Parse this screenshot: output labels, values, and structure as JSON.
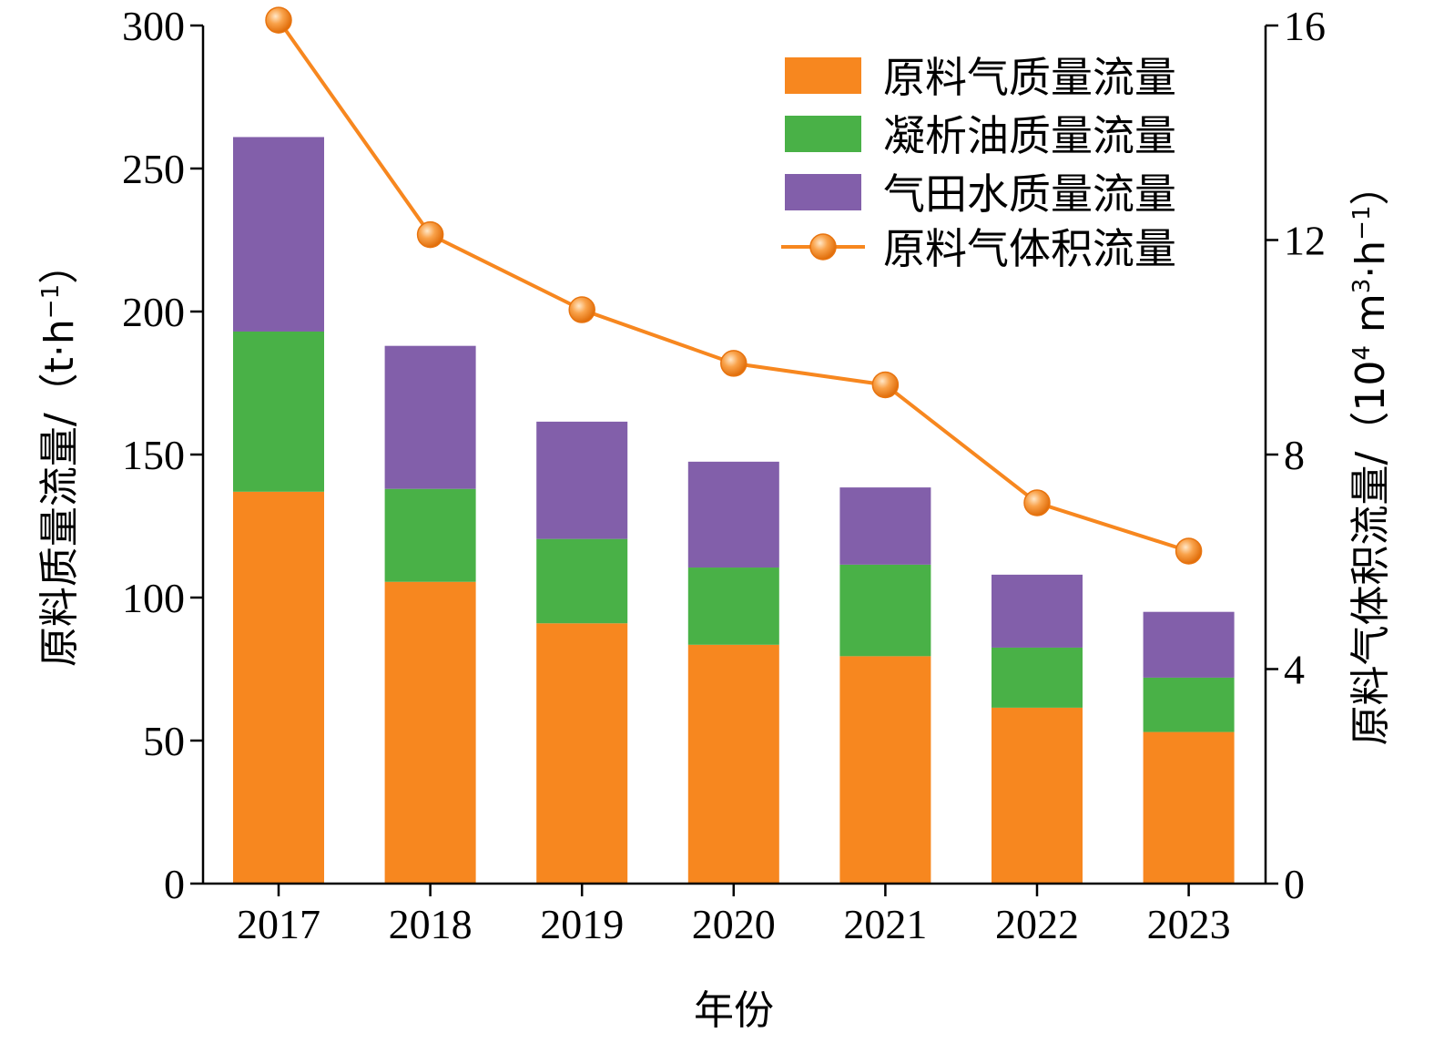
{
  "chart_data": {
    "type": "bar",
    "stacked": true,
    "categories": [
      "2017",
      "2018",
      "2019",
      "2020",
      "2021",
      "2022",
      "2023"
    ],
    "series": [
      {
        "name": "原料气质量流量",
        "values": [
          137,
          105.5,
          91,
          83.5,
          79.5,
          61.5,
          53
        ],
        "color": "#f7871f"
      },
      {
        "name": "凝析油质量流量",
        "values": [
          56,
          32.5,
          29.5,
          27,
          32,
          21,
          19
        ],
        "color": "#49b147"
      },
      {
        "name": "气田水质量流量",
        "values": [
          68,
          50,
          41,
          37,
          27,
          25.5,
          23
        ],
        "color": "#825faa"
      }
    ],
    "line_series": {
      "name": "原料气体积流量",
      "values": [
        16.1,
        12.1,
        10.7,
        9.7,
        9.3,
        7.1,
        6.2
      ],
      "color": "#f7871f",
      "axis": "right"
    },
    "x_title": "年份",
    "y_left": {
      "title": "原料质量流量/（t·h",
      "title_sup": "−1",
      "title_end": "）",
      "range": [
        0,
        300
      ],
      "ticks": [
        "0",
        "50",
        "100",
        "150",
        "200",
        "250",
        "300"
      ]
    },
    "y_right": {
      "title_pre": "原料气体积流量/（10",
      "title_sup1": "4",
      "title_mid": " m",
      "title_sup2": "3",
      "title_mid2": "·h",
      "title_sup3": "−1",
      "title_end": "）",
      "range": [
        0,
        16
      ],
      "ticks": [
        "0",
        "4",
        "8",
        "12",
        "16"
      ]
    },
    "legend_position": "top-right",
    "grid": false
  }
}
